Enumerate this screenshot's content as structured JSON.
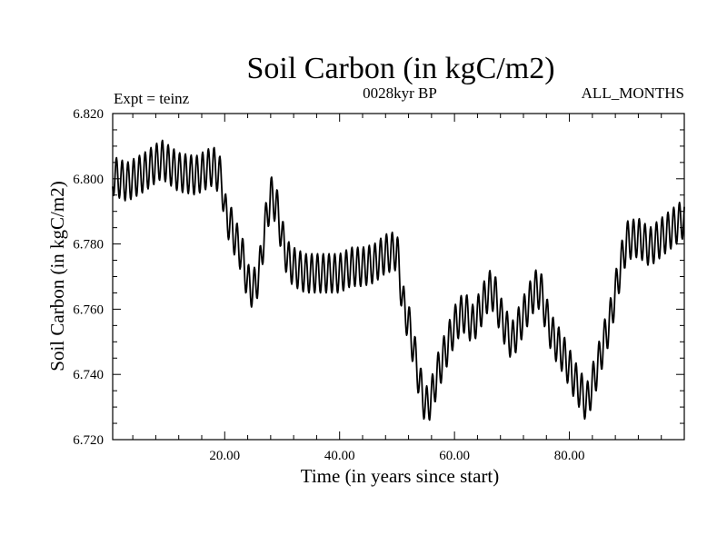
{
  "chart_data": {
    "type": "line",
    "title": "Soil Carbon (in kgC/m2)",
    "top_left_label": "Expt = teinz",
    "top_center_label": "0028kyr BP",
    "top_right_label": "ALL_MONTHS",
    "xlabel": "Time (in years since start)",
    "ylabel": "Soil Carbon (in kgC/m2)",
    "xlim": [
      0.5,
      100
    ],
    "ylim": [
      6.72,
      6.82
    ],
    "x_ticks": [
      20,
      40,
      60,
      80
    ],
    "x_tick_labels": [
      "20.00",
      "40.00",
      "60.00",
      "80.00"
    ],
    "y_ticks": [
      6.72,
      6.74,
      6.76,
      6.78,
      6.8,
      6.82
    ],
    "y_tick_labels": [
      "6.720",
      "6.740",
      "6.760",
      "6.780",
      "6.800",
      "6.820"
    ],
    "seasonal_amplitude": 0.006,
    "series": [
      {
        "name": "Soil Carbon",
        "baseline_x": [
          0.5,
          3,
          6,
          9,
          12,
          15,
          18,
          19.5,
          20,
          21,
          22,
          23,
          24,
          25,
          26,
          27,
          28,
          29,
          30,
          31,
          32,
          34,
          36,
          38,
          40,
          42,
          44,
          46,
          48,
          50,
          51,
          52,
          53,
          54,
          55,
          56,
          57,
          58,
          59,
          60,
          61,
          62,
          63,
          64,
          65,
          66,
          67,
          68,
          69,
          70,
          71,
          72,
          73,
          74,
          75,
          76,
          77,
          78,
          79,
          80,
          81,
          82,
          83,
          84,
          85,
          86,
          87,
          88,
          89,
          90,
          92,
          94,
          96,
          98,
          100
        ],
        "baseline_y": [
          6.801,
          6.799,
          6.802,
          6.806,
          6.802,
          6.801,
          6.804,
          6.8,
          6.79,
          6.786,
          6.781,
          6.777,
          6.768,
          6.766,
          6.771,
          6.785,
          6.795,
          6.792,
          6.782,
          6.775,
          6.773,
          6.771,
          6.771,
          6.771,
          6.771,
          6.773,
          6.773,
          6.774,
          6.777,
          6.778,
          6.762,
          6.756,
          6.747,
          6.737,
          6.73,
          6.733,
          6.74,
          6.745,
          6.75,
          6.755,
          6.758,
          6.759,
          6.755,
          6.758,
          6.762,
          6.766,
          6.765,
          6.758,
          6.754,
          6.75,
          6.754,
          6.758,
          6.762,
          6.766,
          6.766,
          6.758,
          6.752,
          6.749,
          6.746,
          6.742,
          6.738,
          6.735,
          6.731,
          6.737,
          6.743,
          6.75,
          6.756,
          6.765,
          6.774,
          6.781,
          6.782,
          6.779,
          6.782,
          6.785,
          6.788
        ]
      }
    ]
  }
}
